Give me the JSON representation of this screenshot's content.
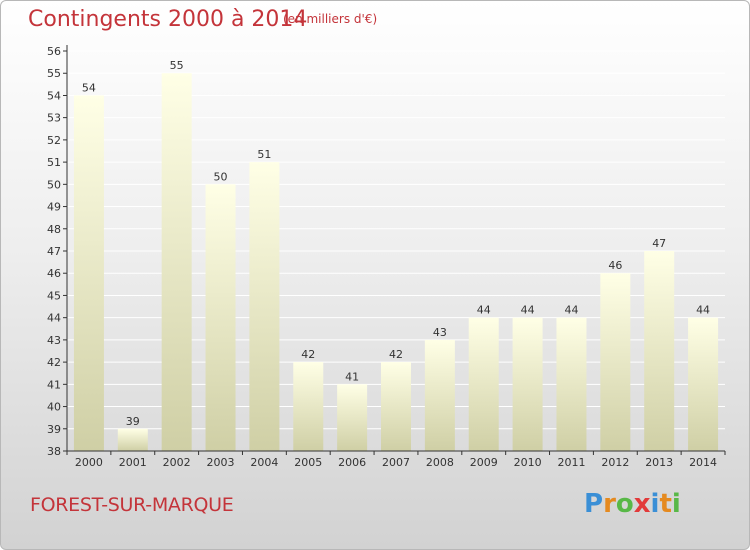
{
  "title": "Contingents 2000 à 2014",
  "subtitle": "(en milliers d'€)",
  "commune": "FOREST-SUR-MARQUE",
  "logo": {
    "text": "Proxiti",
    "letters": [
      {
        "char": "P",
        "color": "#3a8fd6"
      },
      {
        "char": "r",
        "color": "#e58a1f"
      },
      {
        "char": "o",
        "color": "#58b847"
      },
      {
        "char": "x",
        "color": "#e23a3a"
      },
      {
        "char": "i",
        "color": "#3a8fd6"
      },
      {
        "char": "t",
        "color": "#e58a1f"
      },
      {
        "char": "i",
        "color": "#58b847"
      }
    ]
  },
  "colors": {
    "title": "#c4343a",
    "bar_top": "#ffffe6",
    "bar_bottom": "#cfcfa5",
    "axis": "#333333",
    "grid": "#ffffff"
  },
  "chart_data": {
    "type": "bar",
    "categories": [
      "2000",
      "2001",
      "2002",
      "2003",
      "2004",
      "2005",
      "2006",
      "2007",
      "2008",
      "2009",
      "2010",
      "2011",
      "2012",
      "2013",
      "2014"
    ],
    "values": [
      54,
      39,
      55,
      50,
      51,
      42,
      41,
      42,
      43,
      44,
      44,
      44,
      46,
      47,
      44
    ],
    "ylim": [
      38,
      56
    ],
    "yticks": [
      38,
      39,
      40,
      41,
      42,
      43,
      44,
      45,
      46,
      47,
      48,
      49,
      50,
      51,
      52,
      53,
      54,
      55,
      56
    ],
    "grid": true,
    "data_labels": true
  }
}
